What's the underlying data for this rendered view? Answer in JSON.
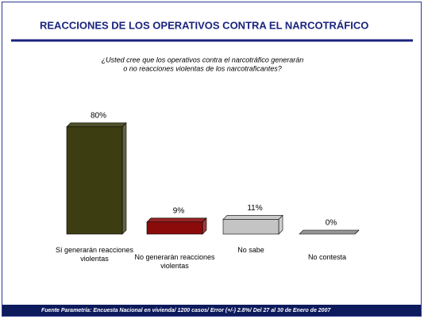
{
  "chart_data": {
    "type": "bar",
    "title": "REACCIONES DE LOS OPERATIVOS CONTRA EL NARCOTRÁFICO",
    "subtitle": [
      "¿Usted cree que los operativos contra el narcotráfico generarán",
      "o no reacciones violentas de los narcotraficantes?"
    ],
    "categories": [
      "Sí generarán reacciones violentas",
      "No generarán reacciones violentas",
      "No sabe",
      "No contesta"
    ],
    "values": [
      80,
      9,
      11,
      0
    ],
    "value_labels": [
      "80%",
      "9%",
      "11%",
      "0%"
    ],
    "colors": [
      "#3d3d12",
      "#8b0b0b",
      "#c4c4c4",
      "#8a8a8a"
    ],
    "footer": "Fuente Parametría: Encuesta Nacional en vivienda/ 1200 casos/ Error (+/-) 2.8%/ Del 27 al 30 de Enero de 2007"
  }
}
